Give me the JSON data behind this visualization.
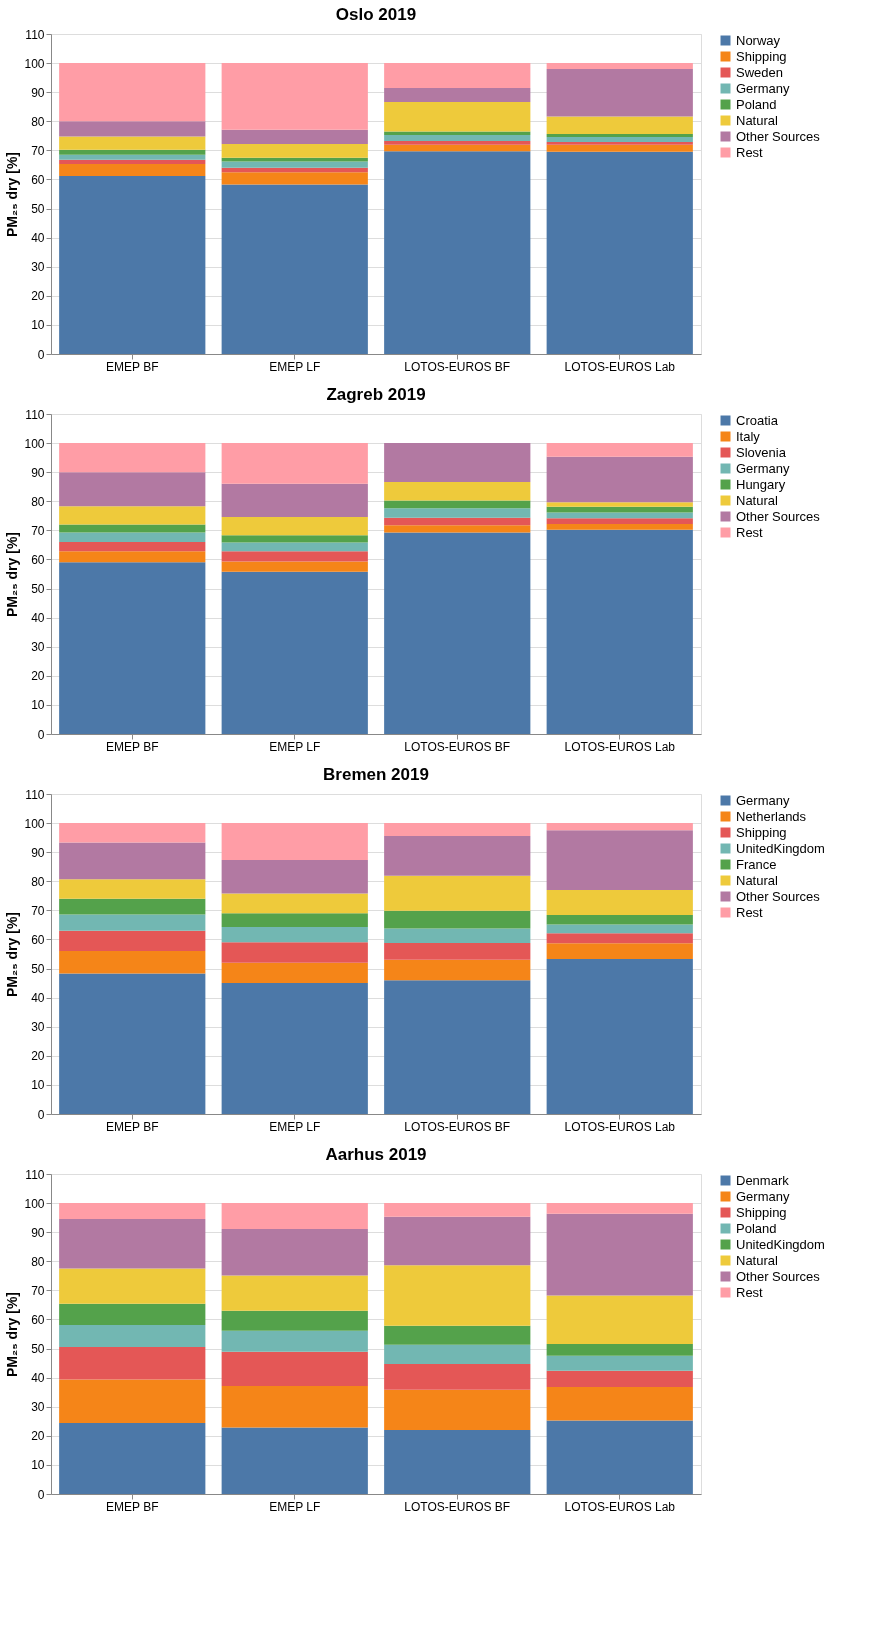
{
  "chart_data": [
    {
      "type": "bar",
      "stacked": true,
      "title": "Oslo 2019",
      "ylabel": "PM₂₅ dry [%]",
      "categories": [
        "EMEP BF",
        "EMEP LF",
        "LOTOS-EUROS BF",
        "LOTOS-EUROS Lab"
      ],
      "ylim": [
        0,
        110
      ],
      "yticks": [
        0,
        10,
        20,
        30,
        40,
        50,
        60,
        70,
        80,
        90,
        100,
        110
      ],
      "grid": "y",
      "legend": "right",
      "series": [
        {
          "name": "Norway",
          "color": "#4c78a8",
          "values": [
            61.2,
            58.3,
            69.7,
            69.5
          ]
        },
        {
          "name": "Shipping",
          "color": "#f58518",
          "values": [
            4.1,
            4.2,
            2.2,
            2.4
          ]
        },
        {
          "name": "Sweden",
          "color": "#e45756",
          "values": [
            1.5,
            1.5,
            1.3,
            1.0
          ]
        },
        {
          "name": "Germany",
          "color": "#72b7b2",
          "values": [
            1.7,
            2.2,
            2.1,
            1.7
          ]
        },
        {
          "name": "Poland",
          "color": "#54a24b",
          "values": [
            1.7,
            1.3,
            1.2,
            1.0
          ]
        },
        {
          "name": "Natural",
          "color": "#eeca3b",
          "values": [
            4.6,
            4.7,
            10.1,
            6.0
          ]
        },
        {
          "name": "Other Sources",
          "color": "#b279a2",
          "values": [
            5.2,
            4.9,
            4.8,
            16.4
          ]
        },
        {
          "name": "Rest",
          "color": "#ff9da6",
          "values": [
            20.0,
            22.9,
            8.6,
            2.0
          ]
        }
      ]
    },
    {
      "type": "bar",
      "stacked": true,
      "title": "Zagreb 2019",
      "ylabel": "PM₂₅ dry [%]",
      "categories": [
        "EMEP BF",
        "EMEP LF",
        "LOTOS-EUROS BF",
        "LOTOS-EUROS Lab"
      ],
      "ylim": [
        0,
        110
      ],
      "yticks": [
        0,
        10,
        20,
        30,
        40,
        50,
        60,
        70,
        80,
        90,
        100,
        110
      ],
      "grid": "y",
      "legend": "right",
      "series": [
        {
          "name": "Croatia",
          "color": "#4c78a8",
          "values": [
            59.0,
            55.8,
            69.3,
            70.2
          ]
        },
        {
          "name": "Italy",
          "color": "#f58518",
          "values": [
            3.8,
            3.5,
            2.5,
            2.0
          ]
        },
        {
          "name": "Slovenia",
          "color": "#e45756",
          "values": [
            3.2,
            3.5,
            2.5,
            2.0
          ]
        },
        {
          "name": "Germany",
          "color": "#72b7b2",
          "values": [
            3.3,
            3.0,
            3.3,
            1.9
          ]
        },
        {
          "name": "Hungary",
          "color": "#54a24b",
          "values": [
            2.7,
            2.5,
            2.7,
            2.0
          ]
        },
        {
          "name": "Natural",
          "color": "#eeca3b",
          "values": [
            6.3,
            6.3,
            6.3,
            1.6
          ]
        },
        {
          "name": "Other Sources",
          "color": "#b279a2",
          "values": [
            11.7,
            11.4,
            13.4,
            15.6
          ]
        },
        {
          "name": "Rest",
          "color": "#ff9da6",
          "values": [
            10.0,
            14.0,
            0,
            4.7
          ]
        }
      ]
    },
    {
      "type": "bar",
      "stacked": true,
      "title": "Bremen 2019",
      "ylabel": "PM₂₅ dry [%]",
      "categories": [
        "EMEP BF",
        "EMEP LF",
        "LOTOS-EUROS BF",
        "LOTOS-EUROS Lab"
      ],
      "ylim": [
        0,
        110
      ],
      "yticks": [
        0,
        10,
        20,
        30,
        40,
        50,
        60,
        70,
        80,
        90,
        100,
        110
      ],
      "grid": "y",
      "legend": "right",
      "series": [
        {
          "name": "Germany",
          "color": "#4c78a8",
          "values": [
            48.3,
            45.0,
            46.0,
            53.3
          ]
        },
        {
          "name": "Netherlands",
          "color": "#f58518",
          "values": [
            7.7,
            7.0,
            7.0,
            5.4
          ]
        },
        {
          "name": "Shipping",
          "color": "#e45756",
          "values": [
            7.0,
            7.0,
            5.8,
            3.4
          ]
        },
        {
          "name": "UnitedKingdom",
          "color": "#72b7b2",
          "values": [
            5.6,
            5.3,
            5.0,
            3.0
          ]
        },
        {
          "name": "France",
          "color": "#54a24b",
          "values": [
            5.4,
            4.7,
            6.1,
            3.3
          ]
        },
        {
          "name": "Natural",
          "color": "#eeca3b",
          "values": [
            6.7,
            6.8,
            12.0,
            8.6
          ]
        },
        {
          "name": "Other Sources",
          "color": "#b279a2",
          "values": [
            12.6,
            11.5,
            13.7,
            20.5
          ]
        },
        {
          "name": "Rest",
          "color": "#ff9da6",
          "values": [
            6.7,
            12.7,
            4.4,
            2.5
          ]
        }
      ]
    },
    {
      "type": "bar",
      "stacked": true,
      "title": "Aarhus 2019",
      "ylabel": "PM₂₅ dry [%]",
      "categories": [
        "EMEP BF",
        "EMEP LF",
        "LOTOS-EUROS BF",
        "LOTOS-EUROS Lab"
      ],
      "ylim": [
        0,
        110
      ],
      "yticks": [
        0,
        10,
        20,
        30,
        40,
        50,
        60,
        70,
        80,
        90,
        100,
        110
      ],
      "grid": "y",
      "legend": "right",
      "series": [
        {
          "name": "Denmark",
          "color": "#4c78a8",
          "values": [
            24.4,
            22.9,
            22.0,
            25.3
          ]
        },
        {
          "name": "Germany",
          "color": "#f58518",
          "values": [
            15.0,
            14.2,
            13.8,
            11.5
          ]
        },
        {
          "name": "Shipping",
          "color": "#e45756",
          "values": [
            11.1,
            11.8,
            8.9,
            5.6
          ]
        },
        {
          "name": "Poland",
          "color": "#72b7b2",
          "values": [
            7.6,
            7.2,
            6.6,
            5.1
          ]
        },
        {
          "name": "UnitedKingdom",
          "color": "#54a24b",
          "values": [
            7.3,
            6.9,
            6.5,
            4.1
          ]
        },
        {
          "name": "Natural",
          "color": "#eeca3b",
          "values": [
            12.1,
            12.1,
            20.8,
            16.6
          ]
        },
        {
          "name": "Other Sources",
          "color": "#b279a2",
          "values": [
            17.0,
            16.0,
            16.7,
            28.1
          ]
        },
        {
          "name": "Rest",
          "color": "#ff9da6",
          "values": [
            5.5,
            8.9,
            4.7,
            3.7
          ]
        }
      ]
    }
  ]
}
